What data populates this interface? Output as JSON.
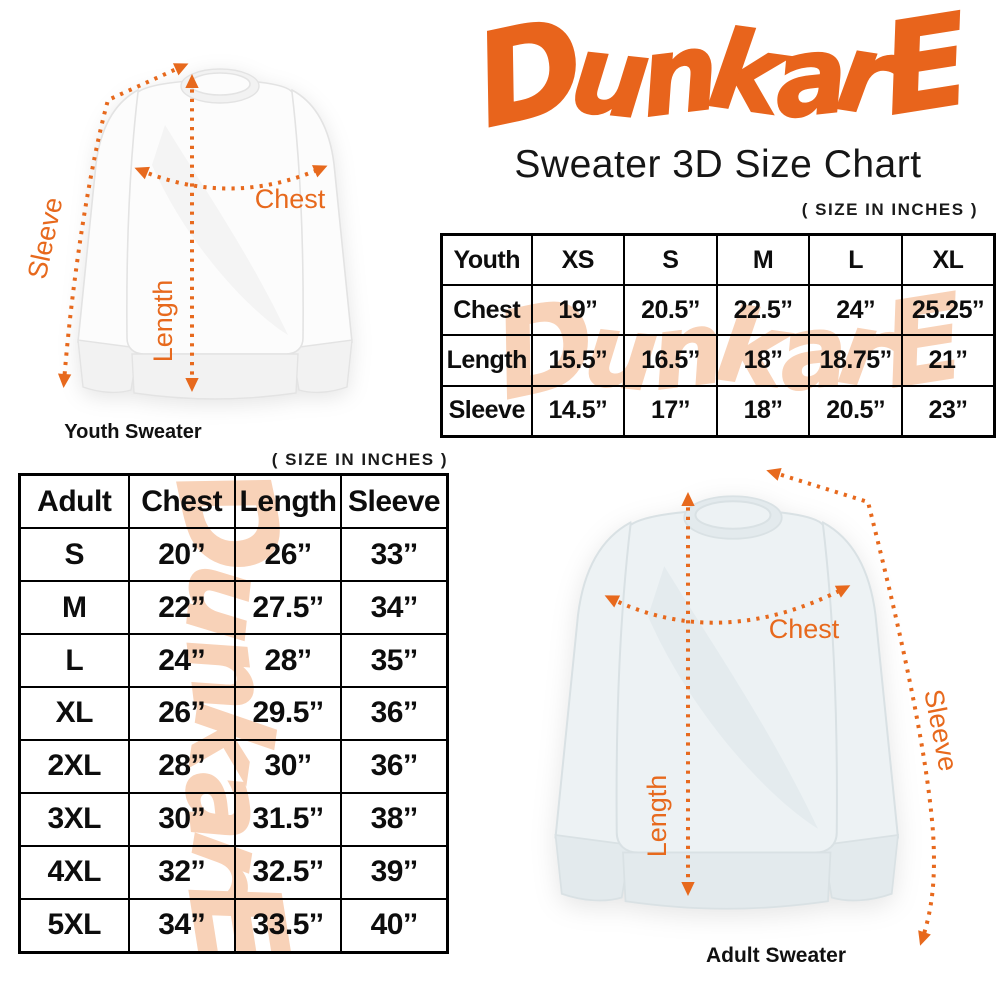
{
  "logo": {
    "text": "DunkarE"
  },
  "header": {
    "subtitle": "Sweater 3D Size Chart"
  },
  "watermark": {
    "text": "DunkarE"
  },
  "colors": {
    "accent": "#E7691D",
    "logo_orange": "#E8641C",
    "watermark_peach": "#F8D2B8"
  },
  "youth_section": {
    "size_note": "( SIZE IN INCHES )",
    "table": {
      "columns": [
        "Youth",
        "XS",
        "S",
        "M",
        "L",
        "XL"
      ],
      "rows": [
        {
          "label": "Chest",
          "values": [
            "19’’",
            "20.5’’",
            "22.5’’",
            "24’’",
            "25.25’’"
          ]
        },
        {
          "label": "Length",
          "values": [
            "15.5’’",
            "16.5’’",
            "18’’",
            "18.75’’",
            "21’’"
          ]
        },
        {
          "label": "Sleeve",
          "values": [
            "14.5’’",
            "17’’",
            "18’’",
            "20.5’’",
            "23’’"
          ]
        }
      ]
    },
    "diagram": {
      "caption": "Youth Sweater",
      "chest_label": "Chest",
      "length_label": "Length",
      "sleeve_label": "Sleeve"
    }
  },
  "adult_section": {
    "size_note": "( SIZE IN INCHES )",
    "table": {
      "columns": [
        "Adult",
        "Chest",
        "Length",
        "Sleeve"
      ],
      "rows": [
        {
          "label": "S",
          "values": [
            "20’’",
            "26’’",
            "33’’"
          ]
        },
        {
          "label": "M",
          "values": [
            "22’’",
            "27.5’’",
            "34’’"
          ]
        },
        {
          "label": "L",
          "values": [
            "24’’",
            "28’’",
            "35’’"
          ]
        },
        {
          "label": "XL",
          "values": [
            "26’’",
            "29.5’’",
            "36’’"
          ]
        },
        {
          "label": "2XL",
          "values": [
            "28’’",
            "30’’",
            "36’’"
          ]
        },
        {
          "label": "3XL",
          "values": [
            "30’’",
            "31.5’’",
            "38’’"
          ]
        },
        {
          "label": "4XL",
          "values": [
            "32’’",
            "32.5’’",
            "39’’"
          ]
        },
        {
          "label": "5XL",
          "values": [
            "34’’",
            "33.5’’",
            "40’’"
          ]
        }
      ]
    },
    "diagram": {
      "caption": "Adult Sweater",
      "chest_label": "Chest",
      "length_label": "Length",
      "sleeve_label": "Sleeve"
    }
  },
  "chart_data": [
    {
      "type": "table",
      "title": "Youth Sweater 3D Size Chart (size in inches)",
      "columns": [
        "Youth",
        "XS",
        "S",
        "M",
        "L",
        "XL"
      ],
      "rows": [
        [
          "Chest",
          19,
          20.5,
          22.5,
          24,
          25.25
        ],
        [
          "Length",
          15.5,
          16.5,
          18,
          18.75,
          21
        ],
        [
          "Sleeve",
          14.5,
          17,
          18,
          20.5,
          23
        ]
      ]
    },
    {
      "type": "table",
      "title": "Adult Sweater 3D Size Chart (size in inches)",
      "columns": [
        "Adult",
        "Chest",
        "Length",
        "Sleeve"
      ],
      "rows": [
        [
          "S",
          20,
          26,
          33
        ],
        [
          "M",
          22,
          27.5,
          34
        ],
        [
          "L",
          24,
          28,
          35
        ],
        [
          "XL",
          26,
          29.5,
          36
        ],
        [
          "2XL",
          28,
          30,
          36
        ],
        [
          "3XL",
          30,
          31.5,
          38
        ],
        [
          "4XL",
          32,
          32.5,
          39
        ],
        [
          "5XL",
          34,
          33.5,
          40
        ]
      ]
    }
  ]
}
